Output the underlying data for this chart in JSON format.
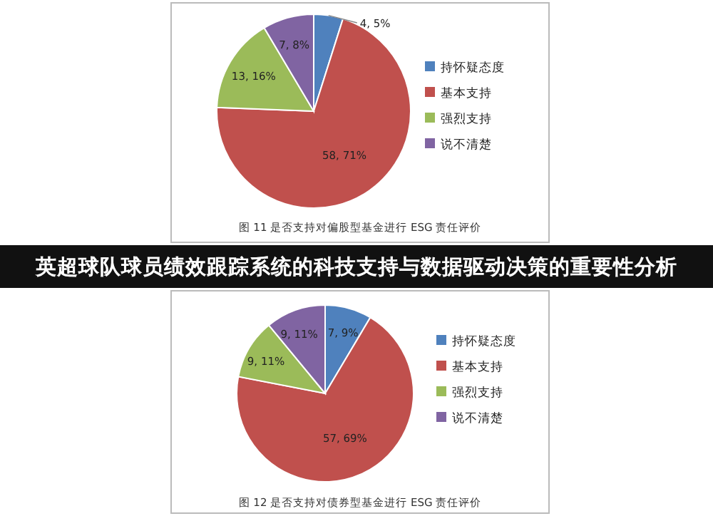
{
  "chart_data": [
    {
      "type": "pie",
      "categories": [
        "持怀疑态度",
        "基本支持",
        "强烈支持",
        "说不清楚"
      ],
      "values": [
        4,
        58,
        13,
        7
      ],
      "colors": [
        "#4f81bd",
        "#c0504d",
        "#9bbb59",
        "#8064a2"
      ],
      "value_labels": [
        "4, 5%",
        "58, 71%",
        "13, 16%",
        "7, 8%"
      ],
      "legend": "right",
      "annotations": [
        "图 11  是否支持对偏股型基金进行 ESG 责任评价"
      ]
    },
    {
      "type": "other",
      "title": "英超球队球员绩效跟踪系统的科技支持与数据驱动决策的重要性分析"
    },
    {
      "type": "pie",
      "categories": [
        "持怀疑态度",
        "基本支持",
        "强烈支持",
        "说不清楚"
      ],
      "values": [
        7,
        57,
        9,
        9
      ],
      "colors": [
        "#4f81bd",
        "#c0504d",
        "#9bbb59",
        "#8064a2"
      ],
      "value_labels": [
        "7, 9%",
        "57, 69%",
        "9, 11%",
        "9, 11%"
      ],
      "legend": "right",
      "annotations": [
        "图 12  是否支持对债券型基金进行 ESG 责任评价"
      ]
    }
  ]
}
